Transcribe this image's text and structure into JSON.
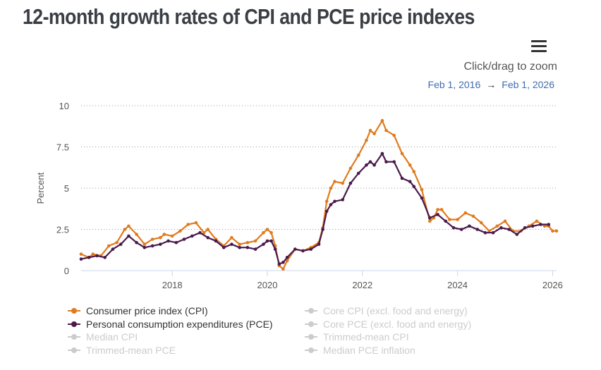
{
  "title": "12-month growth rates of CPI and PCE price indexes",
  "zoom_hint": "Click/drag to zoom",
  "range": {
    "start": "Feb 1, 2016",
    "arrow": "→",
    "end": "Feb 1, 2026"
  },
  "colors": {
    "cpi": "#e07b1e",
    "pce": "#4a1a4c",
    "inactive": "#cccccc",
    "grid": "#999999"
  },
  "legend": [
    {
      "label": "Consumer price index (CPI)",
      "active": true,
      "color": "#e07b1e"
    },
    {
      "label": "Personal consumption expenditures (PCE)",
      "active": true,
      "color": "#4a1a4c"
    },
    {
      "label": "Median CPI",
      "active": false,
      "color": "#cccccc"
    },
    {
      "label": "Trimmed-mean PCE",
      "active": false,
      "color": "#cccccc"
    },
    {
      "label": "Core CPI (excl. food and energy)",
      "active": false,
      "color": "#cccccc"
    },
    {
      "label": "Core PCE (excl. food and energy)",
      "active": false,
      "color": "#cccccc"
    },
    {
      "label": "Trimmed-mean CPI",
      "active": false,
      "color": "#cccccc"
    },
    {
      "label": "Median PCE inflation",
      "active": false,
      "color": "#cccccc"
    }
  ],
  "chart_data": {
    "type": "line",
    "ylabel": "Percent",
    "ylim": [
      0,
      10
    ],
    "yticks": [
      "0",
      "2.5",
      "5",
      "7.5",
      "10"
    ],
    "xticks": [
      "2018",
      "2020",
      "2022",
      "2024",
      "2026"
    ],
    "xlim": [
      "2016-02",
      "2026-02"
    ],
    "grid": "horizontal dotted",
    "legend_position": "bottom",
    "series": [
      {
        "name": "Consumer price index (CPI)",
        "color": "#e07b1e",
        "points": [
          [
            "2016-02",
            1.0
          ],
          [
            "2016-04",
            0.8
          ],
          [
            "2016-05",
            1.0
          ],
          [
            "2016-07",
            0.9
          ],
          [
            "2016-09",
            1.5
          ],
          [
            "2016-11",
            1.7
          ],
          [
            "2017-01",
            2.5
          ],
          [
            "2017-02",
            2.7
          ],
          [
            "2017-04",
            2.2
          ],
          [
            "2017-06",
            1.6
          ],
          [
            "2017-08",
            1.9
          ],
          [
            "2017-10",
            2.0
          ],
          [
            "2017-11",
            2.2
          ],
          [
            "2018-01",
            2.1
          ],
          [
            "2018-03",
            2.4
          ],
          [
            "2018-05",
            2.8
          ],
          [
            "2018-07",
            2.9
          ],
          [
            "2018-09",
            2.3
          ],
          [
            "2018-10",
            2.5
          ],
          [
            "2018-12",
            1.9
          ],
          [
            "2019-02",
            1.5
          ],
          [
            "2019-04",
            2.0
          ],
          [
            "2019-06",
            1.6
          ],
          [
            "2019-08",
            1.7
          ],
          [
            "2019-10",
            1.8
          ],
          [
            "2019-12",
            2.3
          ],
          [
            "2020-01",
            2.5
          ],
          [
            "2020-02",
            2.3
          ],
          [
            "2020-03",
            1.5
          ],
          [
            "2020-04",
            0.3
          ],
          [
            "2020-05",
            0.1
          ],
          [
            "2020-06",
            0.6
          ],
          [
            "2020-08",
            1.3
          ],
          [
            "2020-10",
            1.2
          ],
          [
            "2020-12",
            1.4
          ],
          [
            "2021-02",
            1.7
          ],
          [
            "2021-03",
            2.6
          ],
          [
            "2021-04",
            4.2
          ],
          [
            "2021-05",
            5.0
          ],
          [
            "2021-06",
            5.4
          ],
          [
            "2021-08",
            5.3
          ],
          [
            "2021-10",
            6.2
          ],
          [
            "2021-12",
            7.0
          ],
          [
            "2022-02",
            7.9
          ],
          [
            "2022-03",
            8.5
          ],
          [
            "2022-04",
            8.3
          ],
          [
            "2022-06",
            9.1
          ],
          [
            "2022-07",
            8.5
          ],
          [
            "2022-09",
            8.2
          ],
          [
            "2022-11",
            7.1
          ],
          [
            "2023-01",
            6.4
          ],
          [
            "2023-02",
            6.0
          ],
          [
            "2023-04",
            4.9
          ],
          [
            "2023-06",
            3.0
          ],
          [
            "2023-07",
            3.2
          ],
          [
            "2023-08",
            3.7
          ],
          [
            "2023-09",
            3.7
          ],
          [
            "2023-11",
            3.1
          ],
          [
            "2024-01",
            3.1
          ],
          [
            "2024-03",
            3.5
          ],
          [
            "2024-05",
            3.3
          ],
          [
            "2024-07",
            2.9
          ],
          [
            "2024-09",
            2.4
          ],
          [
            "2024-11",
            2.7
          ],
          [
            "2025-01",
            3.0
          ],
          [
            "2025-03",
            2.4
          ],
          [
            "2025-05",
            2.4
          ],
          [
            "2025-07",
            2.7
          ],
          [
            "2025-09",
            3.0
          ],
          [
            "2025-11",
            2.7
          ],
          [
            "2025-12",
            2.7
          ],
          [
            "2026-01",
            2.4
          ],
          [
            "2026-02",
            2.4
          ]
        ]
      },
      {
        "name": "Personal consumption expenditures (PCE)",
        "color": "#4a1a4c",
        "points": [
          [
            "2016-02",
            0.7
          ],
          [
            "2016-04",
            0.8
          ],
          [
            "2016-06",
            0.9
          ],
          [
            "2016-08",
            0.8
          ],
          [
            "2016-10",
            1.3
          ],
          [
            "2016-12",
            1.6
          ],
          [
            "2017-02",
            2.1
          ],
          [
            "2017-04",
            1.7
          ],
          [
            "2017-06",
            1.4
          ],
          [
            "2017-08",
            1.5
          ],
          [
            "2017-10",
            1.6
          ],
          [
            "2017-12",
            1.8
          ],
          [
            "2018-02",
            1.7
          ],
          [
            "2018-04",
            1.9
          ],
          [
            "2018-06",
            2.1
          ],
          [
            "2018-08",
            2.3
          ],
          [
            "2018-10",
            2.0
          ],
          [
            "2018-12",
            1.8
          ],
          [
            "2019-02",
            1.4
          ],
          [
            "2019-04",
            1.6
          ],
          [
            "2019-06",
            1.4
          ],
          [
            "2019-08",
            1.4
          ],
          [
            "2019-10",
            1.3
          ],
          [
            "2019-12",
            1.6
          ],
          [
            "2020-01",
            1.8
          ],
          [
            "2020-02",
            1.8
          ],
          [
            "2020-03",
            1.3
          ],
          [
            "2020-04",
            0.4
          ],
          [
            "2020-05",
            0.5
          ],
          [
            "2020-06",
            0.8
          ],
          [
            "2020-08",
            1.3
          ],
          [
            "2020-10",
            1.2
          ],
          [
            "2020-12",
            1.3
          ],
          [
            "2021-02",
            1.6
          ],
          [
            "2021-03",
            2.5
          ],
          [
            "2021-04",
            3.6
          ],
          [
            "2021-05",
            4.0
          ],
          [
            "2021-06",
            4.2
          ],
          [
            "2021-08",
            4.3
          ],
          [
            "2021-10",
            5.3
          ],
          [
            "2021-12",
            5.9
          ],
          [
            "2022-02",
            6.4
          ],
          [
            "2022-03",
            6.6
          ],
          [
            "2022-04",
            6.4
          ],
          [
            "2022-06",
            7.1
          ],
          [
            "2022-07",
            6.6
          ],
          [
            "2022-09",
            6.6
          ],
          [
            "2022-11",
            5.6
          ],
          [
            "2023-01",
            5.4
          ],
          [
            "2023-02",
            5.1
          ],
          [
            "2023-04",
            4.4
          ],
          [
            "2023-06",
            3.2
          ],
          [
            "2023-08",
            3.4
          ],
          [
            "2023-10",
            3.0
          ],
          [
            "2023-12",
            2.6
          ],
          [
            "2024-02",
            2.5
          ],
          [
            "2024-04",
            2.7
          ],
          [
            "2024-06",
            2.5
          ],
          [
            "2024-08",
            2.3
          ],
          [
            "2024-10",
            2.3
          ],
          [
            "2024-12",
            2.6
          ],
          [
            "2025-02",
            2.5
          ],
          [
            "2025-04",
            2.2
          ],
          [
            "2025-06",
            2.6
          ],
          [
            "2025-08",
            2.7
          ],
          [
            "2025-10",
            2.8
          ],
          [
            "2025-12",
            2.8
          ]
        ]
      }
    ]
  }
}
